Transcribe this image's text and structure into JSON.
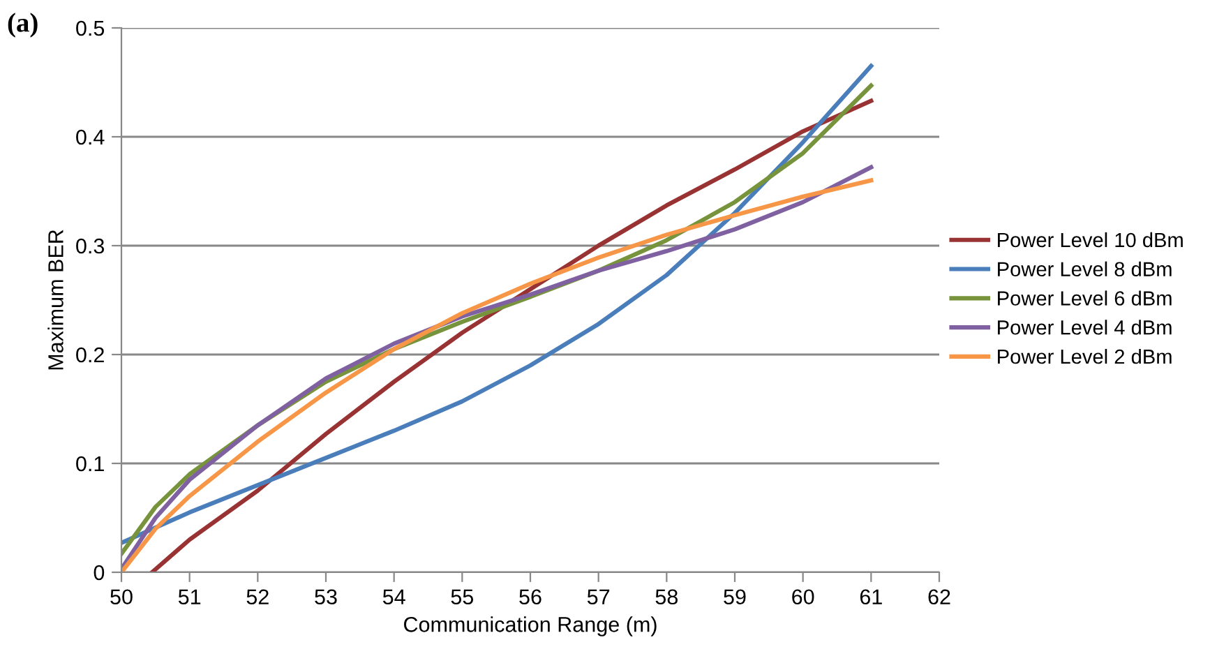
{
  "chart_data": {
    "type": "line",
    "xlabel": "Communication Range (m)",
    "ylabel": "Maximum BER",
    "annotations": [
      "(a)"
    ],
    "xlim": [
      50,
      62
    ],
    "xticks": [
      50,
      51,
      52,
      53,
      54,
      55,
      56,
      57,
      58,
      59,
      60,
      61,
      62
    ],
    "ylim": [
      0,
      0.5
    ],
    "yticks": [
      0,
      0.1,
      0.2,
      0.3,
      0.4,
      0.5
    ],
    "grid": "y",
    "legend": "right",
    "marker": "none",
    "line_style": "solid",
    "series": [
      {
        "name": "Power Level 10 dBm",
        "color": "#993333",
        "x": [
          50.45,
          51,
          52,
          53,
          54,
          55,
          56,
          57,
          58,
          59,
          60,
          61
        ],
        "values": [
          0,
          0.03,
          0.075,
          0.127,
          0.175,
          0.22,
          0.26,
          0.3,
          0.337,
          0.37,
          0.405,
          0.433
        ]
      },
      {
        "name": "Power Level 8 dBm",
        "color": "#4a7ebb",
        "x": [
          50,
          51,
          52,
          53,
          54,
          55,
          56,
          57,
          58,
          59,
          60,
          61
        ],
        "values": [
          0.027,
          0.055,
          0.08,
          0.105,
          0.13,
          0.157,
          0.19,
          0.228,
          0.273,
          0.33,
          0.395,
          0.465
        ]
      },
      {
        "name": "Power Level 6 dBm",
        "color": "#77933c",
        "x": [
          50,
          50.5,
          51,
          52,
          53,
          54,
          55,
          56,
          57,
          58,
          59,
          60,
          61
        ],
        "values": [
          0.017,
          0.06,
          0.09,
          0.135,
          0.175,
          0.205,
          0.23,
          0.253,
          0.277,
          0.305,
          0.34,
          0.385,
          0.447
        ]
      },
      {
        "name": "Power Level 4 dBm",
        "color": "#7f60a0",
        "x": [
          50,
          50.5,
          51,
          52,
          53,
          54,
          55,
          56,
          57,
          58,
          59,
          60,
          61
        ],
        "values": [
          0.003,
          0.05,
          0.085,
          0.135,
          0.178,
          0.21,
          0.235,
          0.255,
          0.277,
          0.295,
          0.315,
          0.34,
          0.372
        ]
      },
      {
        "name": "Power Level 2 dBm",
        "color": "#f79646",
        "x": [
          50,
          50.5,
          51,
          52,
          53,
          54,
          55,
          56,
          57,
          58,
          59,
          60,
          61
        ],
        "values": [
          0,
          0.04,
          0.07,
          0.12,
          0.165,
          0.205,
          0.238,
          0.265,
          0.289,
          0.31,
          0.328,
          0.345,
          0.36
        ]
      }
    ]
  }
}
